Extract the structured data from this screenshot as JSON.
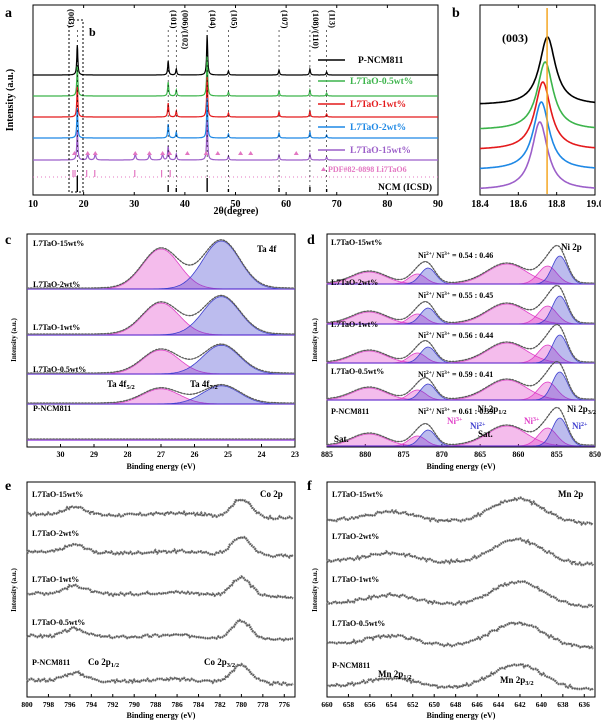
{
  "panels": [
    {
      "id": "a",
      "letter": "a",
      "inset_letter": "b",
      "xlabel": "2θ(degree)",
      "ylabel": "Intensity (a.u.)",
      "xlim": [
        10,
        90
      ],
      "ticks": [
        "10",
        "20",
        "30",
        "40",
        "50",
        "60",
        "70",
        "80",
        "90"
      ],
      "tick_values": [
        10,
        20,
        30,
        40,
        50,
        60,
        70,
        80,
        90
      ],
      "peaks": [
        {
          "label": "(003)",
          "pos": 18.75
        },
        {
          "label": "(101)",
          "pos": 36.7
        },
        {
          "label": "(006)/(102)",
          "pos": 38.3
        },
        {
          "label": "(104)",
          "pos": 44.4
        },
        {
          "label": "(105)",
          "pos": 48.6
        },
        {
          "label": "(107)",
          "pos": 58.6
        },
        {
          "label": "(108)/(110)",
          "pos": 64.7
        },
        {
          "label": "(113)",
          "pos": 68.0
        }
      ],
      "series": [
        {
          "name": "P-NCM811",
          "color": "#000000"
        },
        {
          "name": "L7TaO-0.5wt%",
          "color": "#3cb44b"
        },
        {
          "name": "L7TaO-1wt%",
          "color": "#e41a1c"
        },
        {
          "name": "L7TaO-2wt%",
          "color": "#1e88e5"
        },
        {
          "name": "L7TaO-15wt%",
          "color": "#9c5fc9"
        },
        {
          "name": "PDF#82-0898 Li7TaO6",
          "color": "#e377c2"
        },
        {
          "name": "NCM (ICSD)",
          "color": "#000000"
        }
      ]
    },
    {
      "id": "b",
      "letter": "b",
      "peak_label": "(003)",
      "xlim": [
        18.4,
        19.0
      ],
      "ticks": [
        "18.4",
        "18.6",
        "18.8",
        "19.0"
      ],
      "tick_values": [
        18.4,
        18.6,
        18.8,
        19.0
      ],
      "marker_line": 18.75,
      "centers": [
        18.752,
        18.74,
        18.728,
        18.72,
        18.712
      ],
      "colors": [
        "#000000",
        "#3cb44b",
        "#e41a1c",
        "#1e88e5",
        "#9c5fc9"
      ],
      "marker_color": "#f5a623"
    },
    {
      "id": "c",
      "letter": "c",
      "xlabel": "Binding energy (eV)",
      "ylabel": "Intensity (a.u.)",
      "title": "Ta 4f",
      "xlim": [
        31,
        23
      ],
      "ticks": [
        "30",
        "29",
        "28",
        "27",
        "26",
        "25",
        "24",
        "23"
      ],
      "tick_values": [
        30,
        29,
        28,
        27,
        26,
        25,
        24,
        23
      ],
      "samples": [
        "L7TaO-15wt%",
        "L7TaO-2wt%",
        "L7TaO-1wt%",
        "L7TaO-0.5wt%",
        "P-NCM811"
      ],
      "amplitudes": [
        1.0,
        0.8,
        0.6,
        0.38,
        0
      ],
      "annotations": {
        "ta52": "Ta 4f",
        "ta52_sub": "5/2",
        "ta72": "Ta 4f",
        "ta72_sub": "7/2"
      },
      "peak_positions": [
        27.0,
        25.2
      ],
      "colors": {
        "peak1": "#e040c8",
        "peak2": "#3f3fcf",
        "baseline": "#8a2be2",
        "data": "#999999"
      }
    },
    {
      "id": "d",
      "letter": "d",
      "xlabel": "Binding energy (eV)",
      "ylabel": "Intensity (a.u.)",
      "title": "Ni 2p",
      "xlim": [
        885,
        850
      ],
      "ticks": [
        "885",
        "880",
        "875",
        "870",
        "865",
        "860",
        "855",
        "850"
      ],
      "tick_values": [
        885,
        880,
        875,
        870,
        865,
        860,
        855,
        850
      ],
      "samples": [
        "L7TaO-15wt%",
        "L7TaO-2wt%",
        "L7TaO-1wt%",
        "L7TaO-0.5wt%",
        "P-NCM811"
      ],
      "ratio_prefix": "Ni",
      "ratios": [
        "0.54 : 0.46",
        "0.55 : 0.45",
        "0.56 : 0.44",
        "0.59 : 0.41",
        "0.61 : 0.39"
      ],
      "ratio_text": {
        "ni": "Ni",
        "s2": "2+",
        "slash": "/ Ni",
        "s3": "3+",
        "eq": " = "
      },
      "annotations": {
        "ni2p12": "Ni 2p",
        "ni2p12_sub": "1/2",
        "ni2p32": "Ni 2p",
        "ni2p32_sub": "3/2",
        "sat1": "Sat.",
        "sat2": "Sat.",
        "ni3a": "Ni",
        "ni3a_sup": "3+",
        "ni2a": "Ni",
        "ni2a_sup": "2+",
        "ni3b": "Ni",
        "ni3b_sup": "3+",
        "ni2b": "Ni",
        "ni2b_sup": "2+"
      },
      "colors": {
        "ni2": "#3f3fcf",
        "ni3": "#e040c8",
        "sat": "#e040c8",
        "baseline": "#8a2be2",
        "data": "#999999"
      }
    },
    {
      "id": "e",
      "letter": "e",
      "xlabel": "Binding energy (eV)",
      "ylabel": "Intensity (a.u.)",
      "title": "Co 2p",
      "xlim": [
        800,
        775
      ],
      "ticks": [
        "800",
        "798",
        "796",
        "794",
        "792",
        "790",
        "788",
        "786",
        "784",
        "782",
        "780",
        "778",
        "776"
      ],
      "tick_values": [
        800,
        798,
        796,
        794,
        792,
        790,
        788,
        786,
        784,
        782,
        780,
        778,
        776
      ],
      "samples": [
        "L7TaO-15wt%",
        "L7TaO-2wt%",
        "L7TaO-1wt%",
        "L7TaO-0.5wt%",
        "P-NCM811"
      ],
      "annotations": {
        "co12": "Co 2p",
        "co12_sub": "1/2",
        "co32": "Co 2p",
        "co32_sub": "3/2"
      }
    },
    {
      "id": "f",
      "letter": "f",
      "xlabel": "Binding energy (eV)",
      "ylabel": "Intensity (a.u.)",
      "title": "Mn 2p",
      "xlim": [
        660,
        635
      ],
      "ticks": [
        "660",
        "658",
        "656",
        "654",
        "652",
        "650",
        "648",
        "646",
        "644",
        "642",
        "640",
        "638",
        "636"
      ],
      "tick_values": [
        660,
        658,
        656,
        654,
        652,
        650,
        648,
        646,
        644,
        642,
        640,
        638,
        636
      ],
      "samples": [
        "L7TaO-15wt%",
        "L7TaO-2wt%",
        "L7TaO-1wt%",
        "L7TaO-0.5wt%",
        "P-NCM811"
      ],
      "annotations": {
        "mn12": "Mn 2p",
        "mn12_sub": "1/2",
        "mn32": "Mn 2p",
        "mn32_sub": "3/2"
      }
    }
  ],
  "chart_data": [
    {
      "type": "line",
      "panel": "a",
      "xlabel": "2θ(degree)",
      "ylabel": "Intensity (a.u.)",
      "xlim": [
        10,
        90
      ],
      "series": [
        {
          "name": "P-NCM811"
        },
        {
          "name": "L7TaO-0.5wt%"
        },
        {
          "name": "L7TaO-1wt%"
        },
        {
          "name": "L7TaO-2wt%"
        },
        {
          "name": "L7TaO-15wt%"
        },
        {
          "name": "PDF#82-0898 Li7TaO6"
        },
        {
          "name": "NCM (ICSD)"
        }
      ],
      "peaks_2theta": [
        18.75,
        36.7,
        38.3,
        44.4,
        48.6,
        58.6,
        64.7,
        68.0
      ]
    },
    {
      "type": "line",
      "panel": "b",
      "xlim": [
        18.4,
        19.0
      ],
      "peak_centers_2theta": [
        18.752,
        18.74,
        18.728,
        18.72,
        18.712
      ]
    },
    {
      "type": "line",
      "panel": "c",
      "xlabel": "Binding energy (eV)",
      "ylabel": "Intensity (a.u.)",
      "xlim": [
        31,
        23
      ],
      "peaks_eV": [
        27.0,
        25.2
      ]
    },
    {
      "type": "line",
      "panel": "d",
      "xlabel": "Binding energy (eV)",
      "ylabel": "Intensity (a.u.)",
      "xlim": [
        885,
        850
      ],
      "ni2_ni3_ratios": [
        {
          "sample": "L7TaO-15wt%",
          "ni2": 0.54,
          "ni3": 0.46
        },
        {
          "sample": "L7TaO-2wt%",
          "ni2": 0.55,
          "ni3": 0.45
        },
        {
          "sample": "L7TaO-1wt%",
          "ni2": 0.56,
          "ni3": 0.44
        },
        {
          "sample": "L7TaO-0.5wt%",
          "ni2": 0.59,
          "ni3": 0.41
        },
        {
          "sample": "P-NCM811",
          "ni2": 0.61,
          "ni3": 0.39
        }
      ]
    },
    {
      "type": "line",
      "panel": "e",
      "xlabel": "Binding energy (eV)",
      "ylabel": "Intensity (a.u.)",
      "xlim": [
        800,
        775
      ]
    },
    {
      "type": "line",
      "panel": "f",
      "xlabel": "Binding energy (eV)",
      "ylabel": "Intensity (a.u.)",
      "xlim": [
        660,
        635
      ]
    }
  ]
}
